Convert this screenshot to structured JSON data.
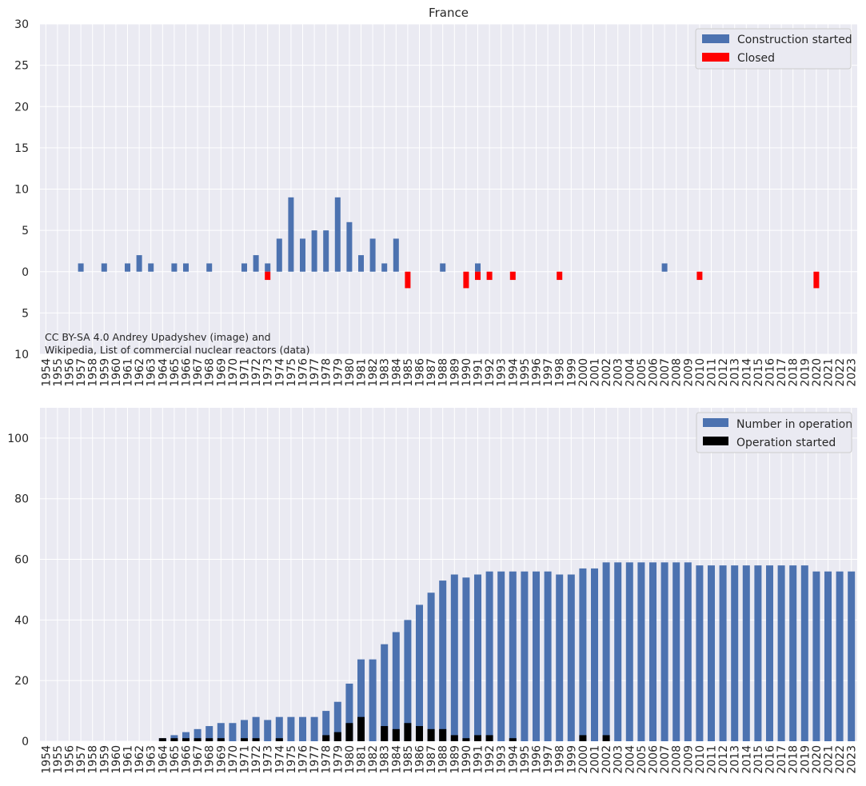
{
  "chart_data": [
    {
      "type": "bar",
      "title": "France",
      "xlabel": "",
      "ylabel": "",
      "ylim": [
        -10,
        30
      ],
      "yticks": [
        {
          "value": 30,
          "label": "30"
        },
        {
          "value": 25,
          "label": "25"
        },
        {
          "value": 20,
          "label": "20"
        },
        {
          "value": 15,
          "label": "15"
        },
        {
          "value": 10,
          "label": "10"
        },
        {
          "value": 5,
          "label": "5"
        },
        {
          "value": 0,
          "label": "0"
        },
        {
          "value": -5,
          "label": "5"
        },
        {
          "value": -10,
          "label": "10"
        }
      ],
      "categories": [
        "1954",
        "1955",
        "1956",
        "1957",
        "1958",
        "1959",
        "1960",
        "1961",
        "1962",
        "1963",
        "1964",
        "1965",
        "1966",
        "1967",
        "1968",
        "1969",
        "1970",
        "1971",
        "1972",
        "1973",
        "1974",
        "1975",
        "1976",
        "1977",
        "1978",
        "1979",
        "1980",
        "1981",
        "1982",
        "1983",
        "1984",
        "1985",
        "1986",
        "1987",
        "1988",
        "1989",
        "1990",
        "1991",
        "1992",
        "1993",
        "1994",
        "1995",
        "1996",
        "1997",
        "1998",
        "1999",
        "2000",
        "2001",
        "2002",
        "2003",
        "2004",
        "2005",
        "2006",
        "2007",
        "2008",
        "2009",
        "2010",
        "2011",
        "2012",
        "2013",
        "2014",
        "2015",
        "2016",
        "2017",
        "2018",
        "2019",
        "2020",
        "2021",
        "2022",
        "2023"
      ],
      "highlight_categories": [
        "1957",
        "1979",
        "1986",
        "2011"
      ],
      "highlight_color": "#ff0000",
      "grid": true,
      "legend_position": "top-right",
      "series": [
        {
          "name": "Construction started",
          "color": "#4c72b0",
          "values": [
            0,
            0,
            0,
            1,
            0,
            1,
            0,
            1,
            2,
            1,
            0,
            1,
            1,
            0,
            1,
            0,
            0,
            1,
            2,
            1,
            4,
            9,
            4,
            5,
            5,
            9,
            6,
            2,
            4,
            1,
            4,
            0,
            0,
            0,
            1,
            0,
            0,
            1,
            0,
            0,
            0,
            0,
            0,
            0,
            0,
            0,
            0,
            0,
            0,
            0,
            0,
            0,
            0,
            1,
            0,
            0,
            0,
            0,
            0,
            0,
            0,
            0,
            0,
            0,
            0,
            0,
            0,
            0,
            0,
            0
          ]
        },
        {
          "name": "Closed",
          "color": "#ff0000",
          "values": [
            0,
            0,
            0,
            0,
            0,
            0,
            0,
            0,
            0,
            0,
            0,
            0,
            0,
            0,
            0,
            0,
            0,
            0,
            0,
            -1,
            0,
            0,
            0,
            0,
            0,
            0,
            0,
            0,
            0,
            0,
            0,
            -2,
            0,
            0,
            0,
            0,
            -2,
            -1,
            -1,
            0,
            -1,
            0,
            0,
            0,
            -1,
            0,
            0,
            0,
            0,
            0,
            0,
            0,
            0,
            0,
            0,
            0,
            -1,
            0,
            0,
            0,
            0,
            0,
            0,
            0,
            0,
            0,
            -2,
            0,
            0,
            0
          ]
        }
      ],
      "annotation": [
        "CC BY-SA 4.0 Andrey Upadyshev (image) and",
        "Wikipedia, List of commercial nuclear reactors (data)"
      ]
    },
    {
      "type": "bar",
      "title": "",
      "xlabel": "",
      "ylabel": "",
      "ylim": [
        0,
        110
      ],
      "yticks": [
        {
          "value": 0,
          "label": "0"
        },
        {
          "value": 20,
          "label": "20"
        },
        {
          "value": 40,
          "label": "40"
        },
        {
          "value": 60,
          "label": "60"
        },
        {
          "value": 80,
          "label": "80"
        },
        {
          "value": 100,
          "label": "100"
        }
      ],
      "categories": [
        "1954",
        "1955",
        "1956",
        "1957",
        "1958",
        "1959",
        "1960",
        "1961",
        "1962",
        "1963",
        "1964",
        "1965",
        "1966",
        "1967",
        "1968",
        "1969",
        "1970",
        "1971",
        "1972",
        "1973",
        "1974",
        "1975",
        "1976",
        "1977",
        "1978",
        "1979",
        "1980",
        "1981",
        "1982",
        "1983",
        "1984",
        "1985",
        "1986",
        "1987",
        "1988",
        "1989",
        "1990",
        "1991",
        "1992",
        "1993",
        "1994",
        "1995",
        "1996",
        "1997",
        "1998",
        "1999",
        "2000",
        "2001",
        "2002",
        "2003",
        "2004",
        "2005",
        "2006",
        "2007",
        "2008",
        "2009",
        "2010",
        "2011",
        "2012",
        "2013",
        "2014",
        "2015",
        "2016",
        "2017",
        "2018",
        "2019",
        "2020",
        "2021",
        "2022",
        "2023"
      ],
      "highlight_categories": [
        "1957",
        "1979",
        "1986",
        "2011"
      ],
      "highlight_color": "#ff0000",
      "grid": true,
      "legend_position": "top-right",
      "series": [
        {
          "name": "Number in operation",
          "color": "#4c72b0",
          "values": [
            0,
            0,
            0,
            0,
            0,
            0,
            0,
            0,
            0,
            0,
            1,
            2,
            3,
            4,
            5,
            6,
            6,
            7,
            8,
            7,
            8,
            8,
            8,
            8,
            10,
            13,
            19,
            27,
            27,
            32,
            36,
            40,
            45,
            49,
            53,
            55,
            54,
            55,
            56,
            56,
            56,
            56,
            56,
            56,
            55,
            55,
            57,
            57,
            59,
            59,
            59,
            59,
            59,
            59,
            59,
            59,
            58,
            58,
            58,
            58,
            58,
            58,
            58,
            58,
            58,
            58,
            56,
            56,
            56,
            56
          ]
        },
        {
          "name": "Operation started",
          "color": "#000000",
          "values": [
            0,
            0,
            0,
            0,
            0,
            0,
            0,
            0,
            0,
            0,
            1,
            1,
            1,
            1,
            1,
            1,
            0,
            1,
            1,
            0,
            1,
            0,
            0,
            0,
            2,
            3,
            6,
            8,
            0,
            5,
            4,
            6,
            5,
            4,
            4,
            2,
            1,
            2,
            2,
            0,
            1,
            0,
            0,
            0,
            0,
            0,
            2,
            0,
            2,
            0,
            0,
            0,
            0,
            0,
            0,
            0,
            0,
            0,
            0,
            0,
            0,
            0,
            0,
            0,
            0,
            0,
            0,
            0,
            0,
            0
          ]
        }
      ]
    }
  ]
}
